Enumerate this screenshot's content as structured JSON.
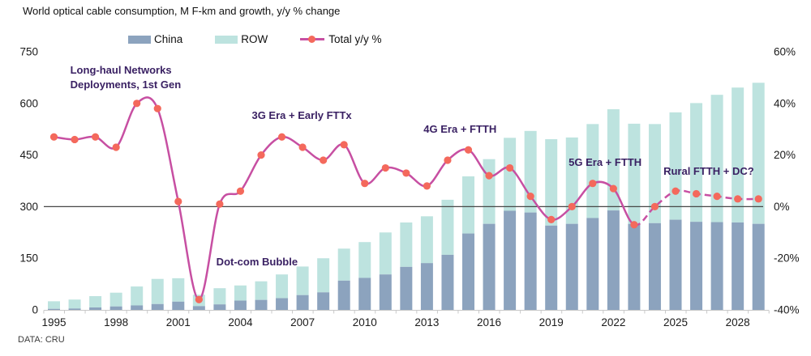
{
  "page": {
    "title": "World optical cable consumption, M F-km and growth, y/y % change",
    "source": "DATA: CRU"
  },
  "legend": [
    {
      "label": "China",
      "color": "#8CA3BE"
    },
    {
      "label": "ROW",
      "color": "#BDE3DF"
    },
    {
      "label": "Total y/y %",
      "color": "#C74FA2",
      "marker": "#F4695C"
    }
  ],
  "chart_data": {
    "type": "bar",
    "title": "World optical cable consumption, M F-km and growth, y/y % change",
    "x": [
      1995,
      1996,
      1997,
      1998,
      1999,
      2000,
      2001,
      2002,
      2003,
      2004,
      2005,
      2006,
      2007,
      2008,
      2009,
      2010,
      2011,
      2012,
      2013,
      2014,
      2015,
      2016,
      2017,
      2018,
      2019,
      2020,
      2021,
      2022,
      2023,
      2024,
      2025,
      2026,
      2027,
      2028,
      2029
    ],
    "series": [
      {
        "name": "China",
        "type": "bar",
        "stack": true,
        "color": "#8CA3BE",
        "values": [
          3,
          4,
          7,
          10,
          13,
          17,
          24,
          11,
          16,
          27,
          29,
          34,
          43,
          51,
          85,
          93,
          103,
          125,
          136,
          160,
          222,
          250,
          288,
          283,
          245,
          250,
          267,
          289,
          250,
          252,
          262,
          256,
          255,
          254,
          250
        ]
      },
      {
        "name": "ROW",
        "type": "bar",
        "stack": true,
        "color": "#BDE3DF",
        "values": [
          22,
          26,
          33,
          40,
          55,
          73,
          68,
          33,
          47,
          44,
          54,
          69,
          83,
          99,
          93,
          104,
          122,
          129,
          136,
          160,
          166,
          188,
          212,
          237,
          251,
          251,
          273,
          294,
          291,
          288,
          312,
          345,
          370,
          392,
          410
        ]
      },
      {
        "name": "Total y/y %",
        "type": "line",
        "axis": "right",
        "color": "#C74FA2",
        "marker_color": "#F4695C",
        "dashed_from_x": 2023,
        "values": [
          27,
          26,
          27,
          23,
          40,
          38,
          2,
          -36,
          1,
          6,
          20,
          27,
          23,
          18,
          24,
          9,
          15,
          13,
          8,
          18,
          22,
          12,
          15,
          4,
          -5,
          0,
          9,
          7,
          -7,
          0,
          6,
          5,
          4,
          3,
          3
        ]
      }
    ],
    "axis_left": {
      "min": 0,
      "max": 750,
      "ticks": [
        0,
        150,
        300,
        450,
        600,
        750
      ],
      "tick_labels": [
        "0",
        "150",
        "300",
        "450",
        "600",
        "750"
      ]
    },
    "axis_right": {
      "min": -40,
      "max": 60,
      "ticks": [
        -40,
        -20,
        0,
        20,
        40,
        60
      ],
      "tick_labels": [
        "-40%",
        "-20%",
        "0%",
        "20%",
        "40%",
        "60%"
      ],
      "zero_line": true
    },
    "x_tick_labels": [
      "1995",
      "1998",
      "2001",
      "2004",
      "2007",
      "2010",
      "2013",
      "2016",
      "2019",
      "2022",
      "2025",
      "2028"
    ],
    "grid": "off",
    "legend_position": "top",
    "annotations": [
      {
        "text": "Long-haul Networks\nDeployments, 1st Gen",
        "year": 1998.46,
        "pct": 50
      },
      {
        "text": "3G Era + Early FTTx",
        "year": 2006.96,
        "pct": 35.2
      },
      {
        "text": "4G Era + FTTH",
        "year": 2014.6,
        "pct": 29.9
      },
      {
        "text": "5G Era + FTTH",
        "year": 2021.6,
        "pct": 17.1
      },
      {
        "text": "Rural FTTH + DC?",
        "year": 2026.6,
        "pct": 13.6
      },
      {
        "text": "Dot-com Bubble",
        "year": 2004.8,
        "pct": -21.5
      }
    ]
  }
}
